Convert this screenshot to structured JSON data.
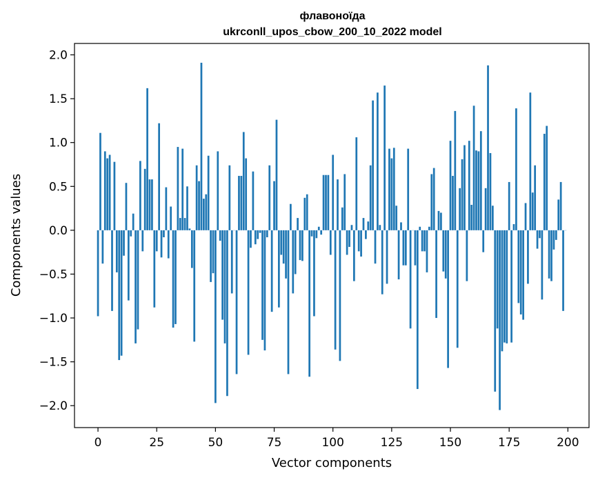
{
  "chart_data": {
    "type": "bar",
    "title_line1": "флавоноїда",
    "title_line2": "ukrconll_upos_cbow_200_10_2022 model",
    "xlabel": "Vector components",
    "ylabel": "Components values",
    "xlim": [
      -10,
      209
    ],
    "ylim": [
      -2.25,
      2.13
    ],
    "xticks": [
      0,
      25,
      50,
      75,
      100,
      125,
      150,
      175,
      200
    ],
    "xtick_labels": [
      "0",
      "25",
      "50",
      "75",
      "100",
      "125",
      "150",
      "175",
      "200"
    ],
    "yticks": [
      -2.0,
      -1.5,
      -1.0,
      -0.5,
      0.0,
      0.5,
      1.0,
      1.5,
      2.0
    ],
    "ytick_labels": [
      "−2.0",
      "−1.5",
      "−1.0",
      "−0.5",
      "0.0",
      "0.5",
      "1.0",
      "1.5",
      "2.0"
    ],
    "bar_color": "#1f77b4",
    "values": [
      -0.98,
      1.11,
      -0.38,
      0.9,
      0.82,
      0.86,
      -0.92,
      0.78,
      -0.48,
      -1.48,
      -1.43,
      -0.29,
      0.54,
      -0.8,
      -0.07,
      0.19,
      -1.29,
      -1.13,
      0.79,
      -0.24,
      0.7,
      1.62,
      0.58,
      0.58,
      -0.88,
      -0.24,
      1.22,
      -0.31,
      -0.08,
      0.49,
      -0.32,
      0.27,
      -1.11,
      -1.07,
      0.95,
      0.14,
      0.93,
      0.14,
      0.5,
      0.02,
      -0.43,
      -1.27,
      0.74,
      0.56,
      1.91,
      0.36,
      0.41,
      0.85,
      -0.59,
      -0.49,
      -1.97,
      0.9,
      -0.12,
      -1.02,
      -1.29,
      -1.89,
      0.74,
      -0.72,
      0.0,
      -1.64,
      0.62,
      0.62,
      1.12,
      0.82,
      -1.42,
      -0.2,
      0.67,
      -0.16,
      -0.1,
      -0.03,
      -1.25,
      -1.37,
      -0.08,
      0.74,
      -0.93,
      0.56,
      1.26,
      -0.88,
      -0.28,
      -0.38,
      -0.55,
      -1.64,
      0.3,
      -0.72,
      -0.5,
      0.14,
      -0.34,
      -0.35,
      0.37,
      0.41,
      -1.67,
      -0.07,
      -0.98,
      -0.09,
      0.04,
      -0.05,
      0.63,
      0.63,
      0.63,
      -0.28,
      0.86,
      -1.36,
      0.58,
      -1.49,
      0.26,
      0.64,
      -0.28,
      -0.19,
      0.06,
      -0.58,
      1.06,
      -0.24,
      -0.3,
      0.14,
      -0.1,
      0.1,
      0.74,
      1.48,
      -0.38,
      1.57,
      0.06,
      -0.73,
      1.65,
      -0.61,
      0.93,
      0.82,
      0.94,
      0.28,
      -0.56,
      0.09,
      -0.4,
      -0.4,
      0.93,
      -1.12,
      0.0,
      -0.4,
      -1.81,
      0.04,
      -0.24,
      -0.24,
      -0.48,
      0.04,
      0.64,
      0.71,
      -1.0,
      0.22,
      0.2,
      -0.47,
      -0.55,
      -1.57,
      1.02,
      0.62,
      1.36,
      -1.34,
      0.48,
      0.81,
      0.97,
      -0.58,
      1.02,
      0.29,
      1.42,
      0.91,
      0.9,
      1.13,
      -0.25,
      0.48,
      1.88,
      0.88,
      0.28,
      -1.84,
      -1.12,
      -2.05,
      -1.38,
      -1.28,
      -1.29,
      0.55,
      -1.28,
      0.07,
      1.39,
      -0.83,
      -0.96,
      -1.02,
      0.31,
      -0.61,
      1.57,
      0.43,
      0.74,
      -0.21,
      -0.09,
      -0.79,
      1.1,
      1.19,
      -0.55,
      -0.58,
      -0.22,
      -0.11,
      0.35,
      0.55,
      -0.92,
      0.0
    ]
  }
}
